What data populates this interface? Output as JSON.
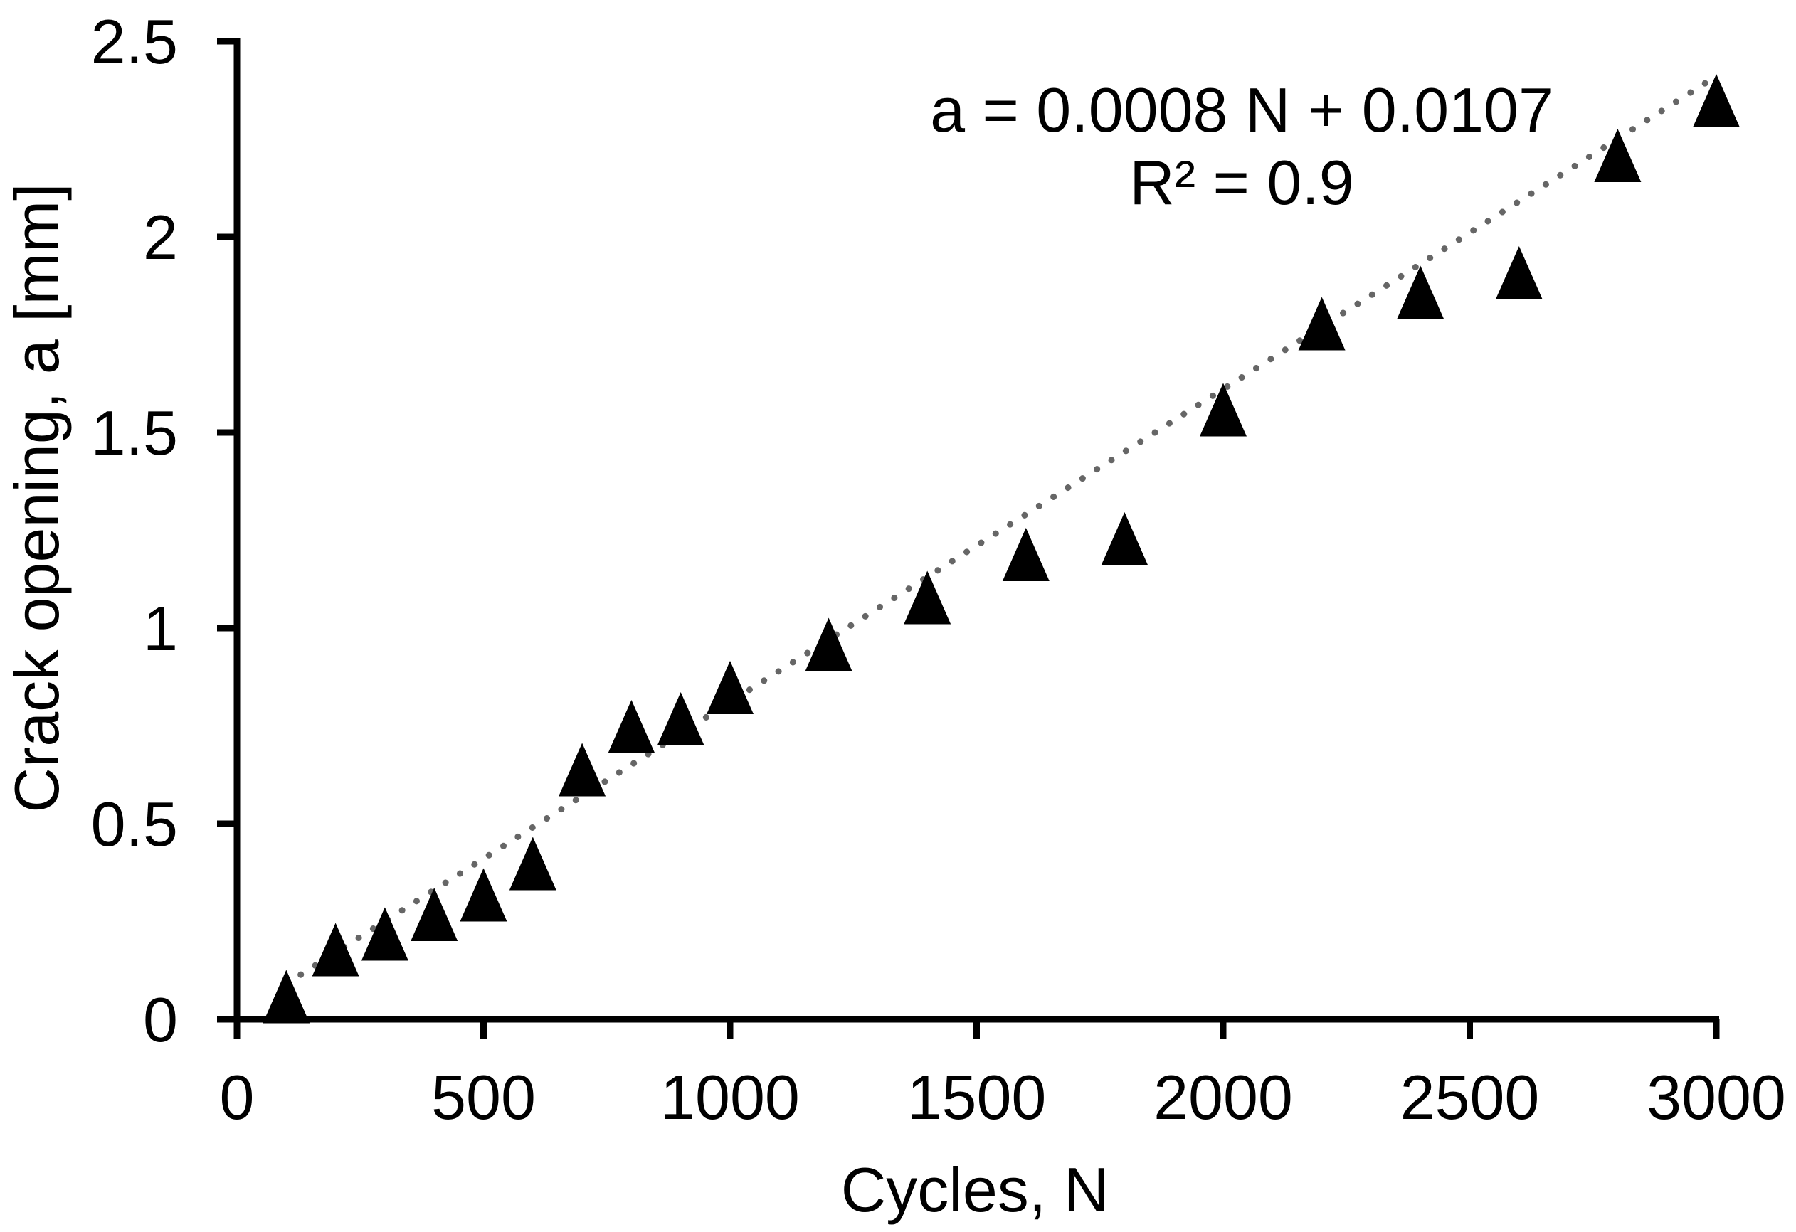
{
  "chart_data": {
    "type": "scatter",
    "title": "",
    "xlabel": "Cycles, N",
    "ylabel": "Crack opening, a [mm]",
    "xlim": [
      0,
      3000
    ],
    "ylim": [
      0,
      2.5
    ],
    "xticks": [
      "0",
      "500",
      "1000",
      "1500",
      "2000",
      "2500",
      "3000"
    ],
    "yticks": [
      "0",
      "0.5",
      "1",
      "1.5",
      "2",
      "2.5"
    ],
    "grid": false,
    "legend": "none",
    "series": [
      {
        "name": "Crack opening",
        "marker": "triangle",
        "x": [
          100,
          200,
          300,
          400,
          500,
          600,
          700,
          800,
          900,
          1000,
          1200,
          1400,
          1600,
          1800,
          2000,
          2200,
          2400,
          2600,
          2800,
          3000
        ],
        "y": [
          0.05,
          0.17,
          0.21,
          0.26,
          0.31,
          0.39,
          0.63,
          0.74,
          0.76,
          0.84,
          0.95,
          1.07,
          1.18,
          1.22,
          1.55,
          1.77,
          1.85,
          1.9,
          2.2,
          2.34
        ]
      }
    ],
    "trendline": {
      "type": "linear",
      "style": "dotted",
      "slope": 0.0008,
      "intercept": 0.0107,
      "x_range": [
        100,
        3000
      ],
      "equation": "a = 0.0008 N + 0.0107",
      "r_squared": "R² = 0.9"
    },
    "colors": {
      "markers": "#000000",
      "trendline": "#666666",
      "axes": "#000000"
    }
  }
}
